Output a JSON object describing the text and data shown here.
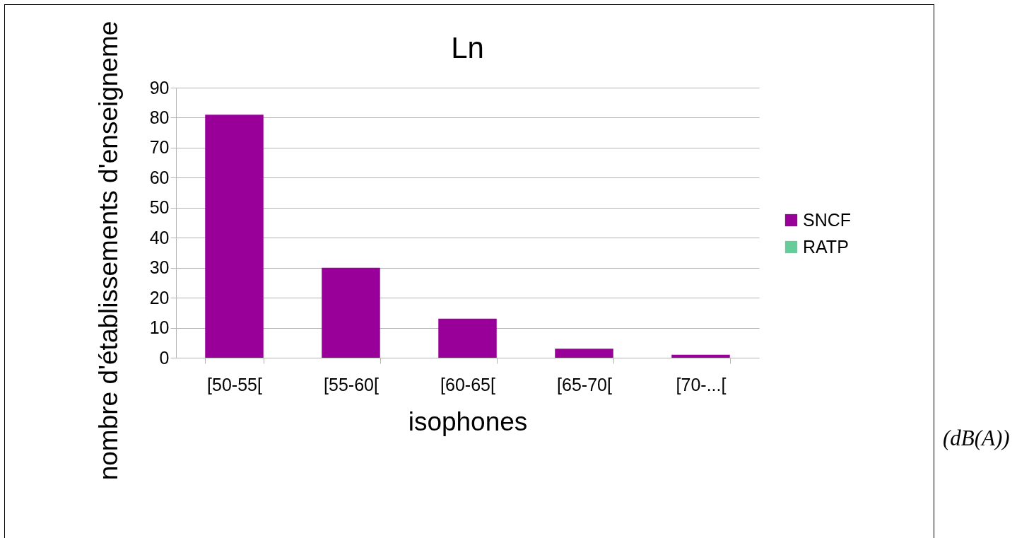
{
  "chart_data": {
    "type": "bar",
    "title": "Ln",
    "xlabel": "isophones",
    "ylabel": "nombre d'établissements d'enseigneme",
    "categories": [
      "[50-55[",
      "[55-60[",
      "[60-65[",
      "[65-70[",
      "[70-...["
    ],
    "series": [
      {
        "name": "SNCF",
        "color": "#990099",
        "values": [
          81,
          30,
          13,
          3,
          1
        ]
      },
      {
        "name": "RATP",
        "color": "#66cc99",
        "values": [
          0,
          0,
          0,
          0,
          0
        ]
      }
    ],
    "ylim": [
      0,
      90
    ],
    "yticks": [
      0,
      10,
      20,
      30,
      40,
      50,
      60,
      70,
      80,
      90
    ],
    "grid": "y",
    "legend": "right",
    "annotations": [
      "(dB(A))"
    ]
  }
}
